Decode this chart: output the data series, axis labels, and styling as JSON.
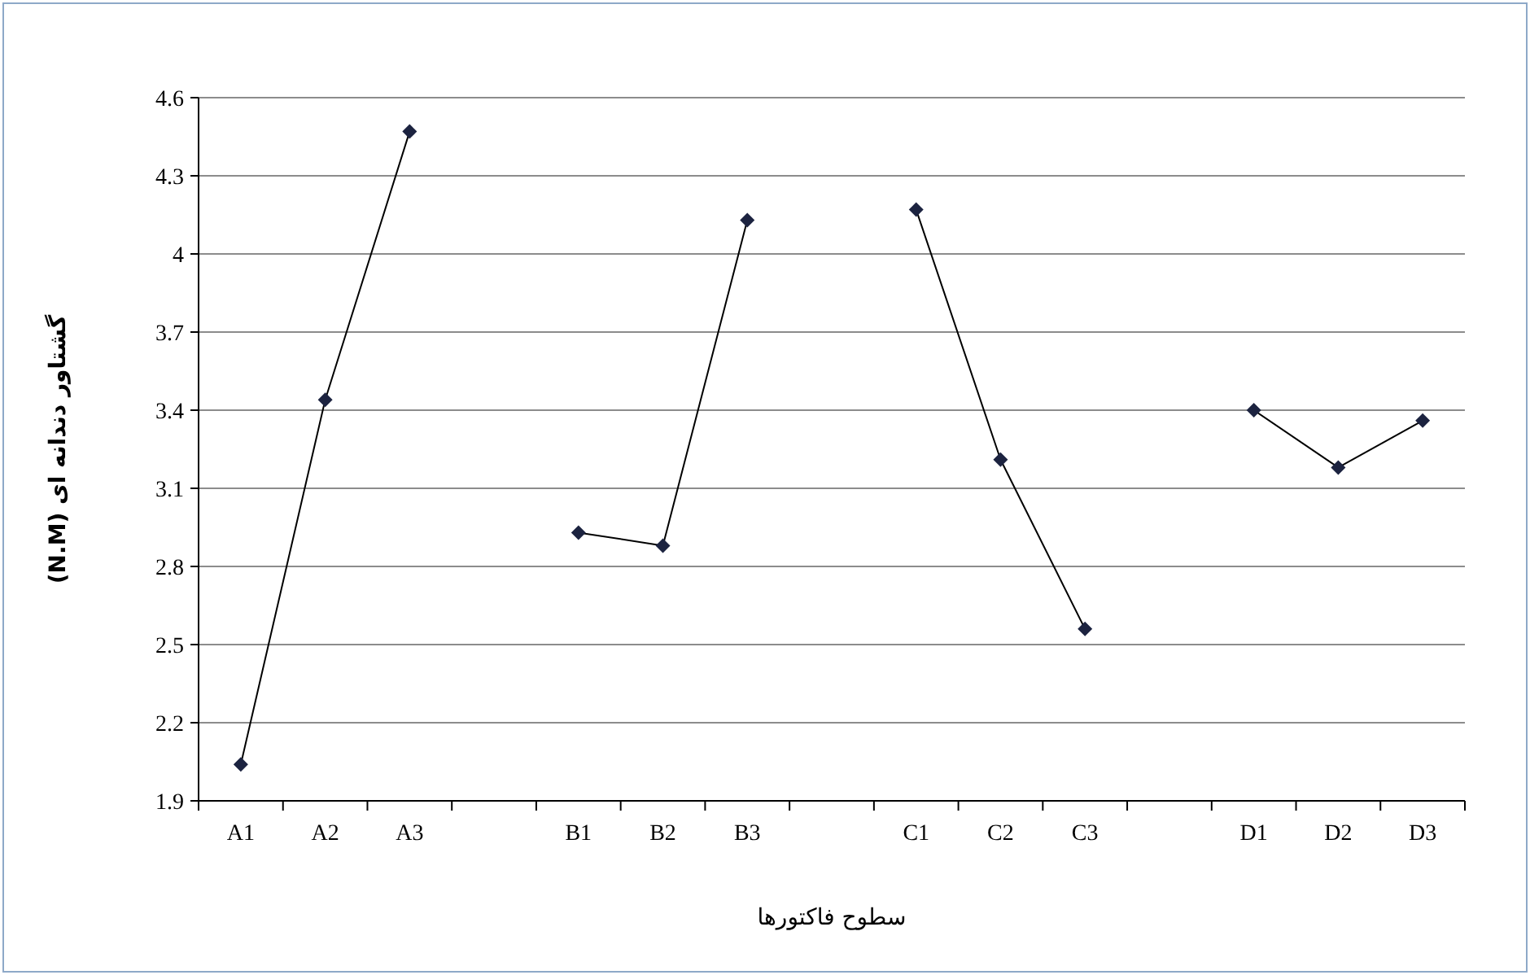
{
  "chart_data": {
    "type": "line",
    "xlabel": "سطوح فاکتورها",
    "ylabel": "گشتاور دندانه ای  (N.M)",
    "categories": [
      "A1",
      "A2",
      "A3",
      null,
      "B1",
      "B2",
      "B3",
      null,
      "C1",
      "C2",
      "C3",
      null,
      "D1",
      "D2",
      "D3"
    ],
    "series": [
      {
        "color": "#000000",
        "values": [
          2.04,
          3.44,
          4.47,
          null,
          2.93,
          2.88,
          4.13,
          null,
          4.17,
          3.21,
          2.56,
          null,
          3.4,
          3.18,
          3.36
        ]
      }
    ],
    "ylim": [
      1.9,
      4.6
    ],
    "yticks": [
      {
        "value": 1.9,
        "label": "1.9"
      },
      {
        "value": 2.2,
        "label": "2.2"
      },
      {
        "value": 2.5,
        "label": "2.5"
      },
      {
        "value": 2.8,
        "label": "2.8"
      },
      {
        "value": 3.1,
        "label": "3.1"
      },
      {
        "value": 3.4,
        "label": "3.4"
      },
      {
        "value": 3.7,
        "label": "3.7"
      },
      {
        "value": 4,
        "label": "4"
      },
      {
        "value": 4.3,
        "label": "4.3"
      },
      {
        "value": 4.6,
        "label": "4.6"
      }
    ],
    "grid": "y",
    "marker": "diamond",
    "line_style": "solid"
  }
}
